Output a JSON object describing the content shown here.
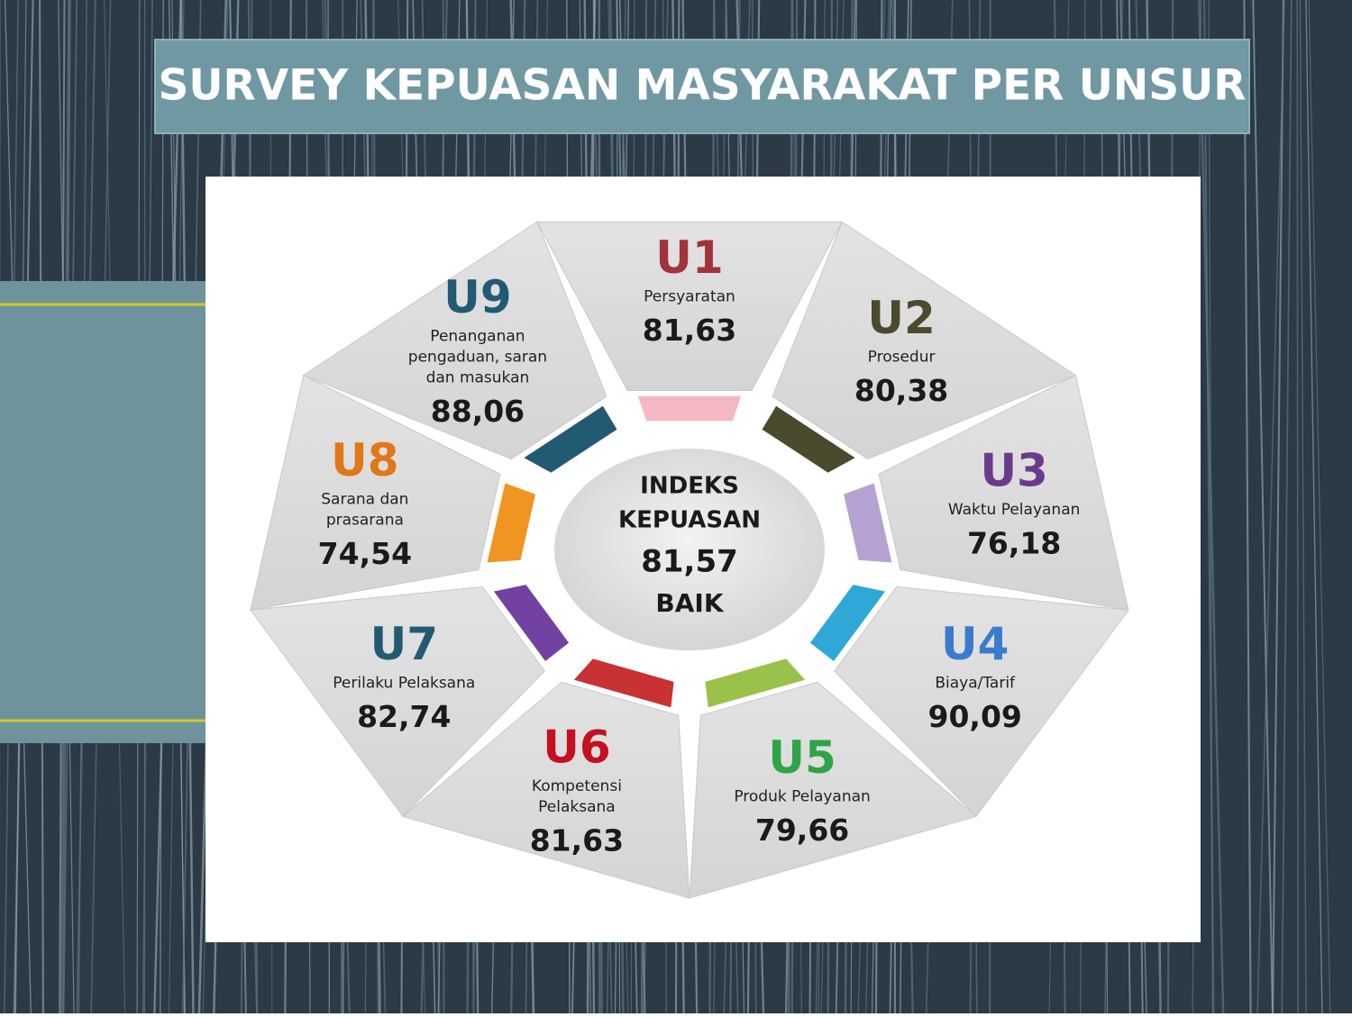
{
  "header": {
    "title": "SURVEY KEPUASAN MASYARAKAT PER UNSUR"
  },
  "center": {
    "lines": [
      "INDEKS",
      "KEPUASAN",
      "81,57",
      "BAIK"
    ]
  },
  "units": [
    {
      "code": "U1",
      "label": [
        "Persyaratan"
      ],
      "value": "81,63"
    },
    {
      "code": "U2",
      "label": [
        "Prosedur"
      ],
      "value": "80,38"
    },
    {
      "code": "U3",
      "label": [
        "Waktu Pelayanan"
      ],
      "value": "76,18"
    },
    {
      "code": "U4",
      "label": [
        "Biaya/Tarif"
      ],
      "value": "90,09"
    },
    {
      "code": "U5",
      "label": [
        "Produk Pelayanan"
      ],
      "value": "79,66"
    },
    {
      "code": "U6",
      "label": [
        "Kompetensi",
        "Pelaksana"
      ],
      "value": "81,63"
    },
    {
      "code": "U7",
      "label": [
        "Perilaku Pelaksana"
      ],
      "value": "82,74"
    },
    {
      "code": "U8",
      "label": [
        "Sarana dan",
        "prasarana"
      ],
      "value": "74,54"
    },
    {
      "code": "U9",
      "label": [
        "Penanganan",
        "pengaduan, saran",
        "dan masukan"
      ],
      "value": "88,06"
    }
  ]
}
